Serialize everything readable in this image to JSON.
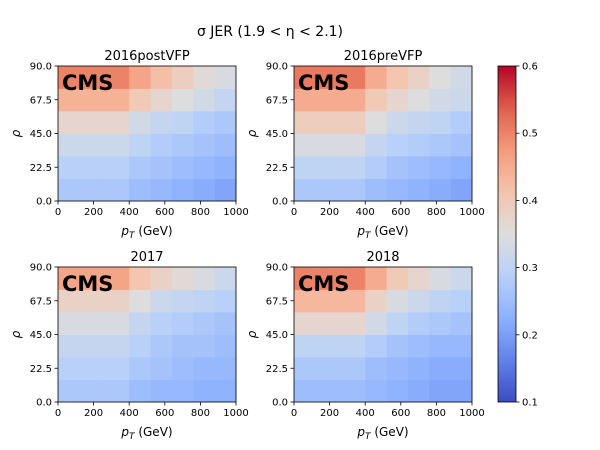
{
  "figure": {
    "suptitle": "σ JER (1.9 < η < 2.1)"
  },
  "chart_data": {
    "type": "heatmap",
    "x_edges": [
      0,
      80,
      160,
      240,
      320,
      400,
      520,
      640,
      760,
      880,
      1000
    ],
    "y_edges": [
      0,
      15,
      30,
      45,
      60,
      75,
      90
    ],
    "xlim": [
      0,
      1000
    ],
    "ylim": [
      0,
      90
    ],
    "x_ticks": [
      "0",
      "200",
      "400",
      "600",
      "800",
      "1000"
    ],
    "y_ticks": [
      "0.0",
      "22.5",
      "45.0",
      "67.5",
      "90.0"
    ],
    "xlabel": "p_T (GeV)",
    "ylabel": "ρ",
    "colorbar": {
      "colormap": "coolwarm",
      "vmin": 0.1,
      "vmax": 0.6,
      "ticks": [
        "0.1",
        "0.2",
        "0.3",
        "0.4",
        "0.5",
        "0.6"
      ]
    },
    "panels": [
      {
        "title": "2016postVFP",
        "label": "CMS",
        "values": [
          [
            0.27,
            0.27,
            0.27,
            0.27,
            0.27,
            0.25,
            0.24,
            0.23,
            0.22,
            0.21
          ],
          [
            0.29,
            0.29,
            0.29,
            0.29,
            0.29,
            0.27,
            0.26,
            0.25,
            0.24,
            0.23
          ],
          [
            0.32,
            0.32,
            0.32,
            0.32,
            0.32,
            0.3,
            0.28,
            0.27,
            0.26,
            0.25
          ],
          [
            0.37,
            0.37,
            0.37,
            0.37,
            0.37,
            0.33,
            0.31,
            0.3,
            0.28,
            0.27
          ],
          [
            0.44,
            0.44,
            0.44,
            0.44,
            0.44,
            0.4,
            0.37,
            0.35,
            0.33,
            0.31
          ],
          [
            0.5,
            0.5,
            0.5,
            0.5,
            0.5,
            0.46,
            0.42,
            0.39,
            0.36,
            0.34
          ]
        ]
      },
      {
        "title": "2016preVFP",
        "label": "CMS",
        "values": [
          [
            0.27,
            0.27,
            0.27,
            0.27,
            0.27,
            0.25,
            0.24,
            0.23,
            0.22,
            0.21
          ],
          [
            0.3,
            0.3,
            0.3,
            0.3,
            0.3,
            0.28,
            0.26,
            0.25,
            0.24,
            0.23
          ],
          [
            0.34,
            0.34,
            0.34,
            0.34,
            0.34,
            0.31,
            0.29,
            0.28,
            0.27,
            0.26
          ],
          [
            0.39,
            0.39,
            0.39,
            0.39,
            0.39,
            0.35,
            0.32,
            0.31,
            0.3,
            0.28
          ],
          [
            0.45,
            0.45,
            0.45,
            0.45,
            0.45,
            0.4,
            0.37,
            0.35,
            0.33,
            0.32
          ],
          [
            0.51,
            0.51,
            0.51,
            0.51,
            0.51,
            0.45,
            0.41,
            0.38,
            0.35,
            0.33
          ]
        ]
      },
      {
        "title": "2017",
        "label": "CMS",
        "values": [
          [
            0.27,
            0.27,
            0.27,
            0.27,
            0.27,
            0.25,
            0.24,
            0.24,
            0.23,
            0.23
          ],
          [
            0.29,
            0.29,
            0.29,
            0.29,
            0.29,
            0.27,
            0.26,
            0.25,
            0.24,
            0.24
          ],
          [
            0.31,
            0.31,
            0.31,
            0.31,
            0.31,
            0.29,
            0.27,
            0.26,
            0.26,
            0.25
          ],
          [
            0.34,
            0.34,
            0.34,
            0.34,
            0.34,
            0.31,
            0.29,
            0.28,
            0.27,
            0.26
          ],
          [
            0.38,
            0.38,
            0.38,
            0.38,
            0.38,
            0.35,
            0.32,
            0.31,
            0.3,
            0.29
          ],
          [
            0.46,
            0.46,
            0.46,
            0.46,
            0.46,
            0.41,
            0.38,
            0.36,
            0.34,
            0.32
          ]
        ]
      },
      {
        "title": "2018",
        "label": "CMS",
        "values": [
          [
            0.25,
            0.25,
            0.25,
            0.25,
            0.25,
            0.24,
            0.23,
            0.22,
            0.21,
            0.21
          ],
          [
            0.27,
            0.27,
            0.27,
            0.27,
            0.27,
            0.25,
            0.24,
            0.23,
            0.22,
            0.22
          ],
          [
            0.3,
            0.3,
            0.3,
            0.3,
            0.3,
            0.28,
            0.26,
            0.25,
            0.24,
            0.24
          ],
          [
            0.37,
            0.37,
            0.37,
            0.37,
            0.37,
            0.33,
            0.3,
            0.28,
            0.27,
            0.26
          ],
          [
            0.43,
            0.43,
            0.43,
            0.43,
            0.43,
            0.38,
            0.34,
            0.32,
            0.3,
            0.29
          ],
          [
            0.5,
            0.5,
            0.5,
            0.5,
            0.5,
            0.45,
            0.4,
            0.37,
            0.34,
            0.32
          ]
        ]
      }
    ]
  }
}
